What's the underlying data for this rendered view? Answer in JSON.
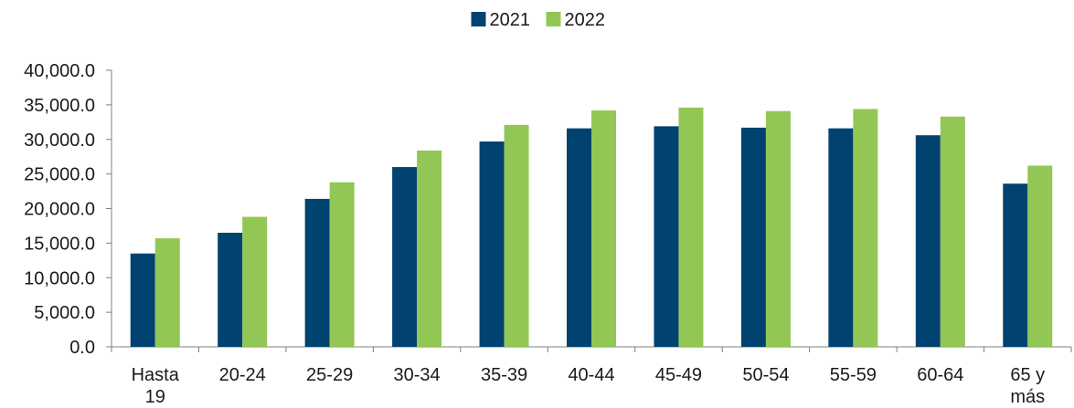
{
  "chart_data": {
    "type": "bar",
    "categories": [
      "Hasta 19",
      "20-24",
      "25-29",
      "30-34",
      "35-39",
      "40-44",
      "45-49",
      "50-54",
      "55-59",
      "60-64",
      "65 y más"
    ],
    "category_lines": [
      [
        "Hasta",
        "19"
      ],
      [
        "20-24"
      ],
      [
        "25-29"
      ],
      [
        "30-34"
      ],
      [
        "35-39"
      ],
      [
        "40-44"
      ],
      [
        "45-49"
      ],
      [
        "50-54"
      ],
      [
        "55-59"
      ],
      [
        "60-64"
      ],
      [
        "65 y",
        "más"
      ]
    ],
    "series": [
      {
        "name": "2021",
        "color": "#004270",
        "values": [
          13500,
          16500,
          21400,
          26000,
          29700,
          31600,
          31900,
          31700,
          31600,
          30600,
          23600
        ]
      },
      {
        "name": "2022",
        "color": "#92c756",
        "values": [
          15700,
          18800,
          23800,
          28400,
          32100,
          34200,
          34600,
          34100,
          34400,
          33300,
          26200
        ]
      }
    ],
    "yticks": [
      "0.0",
      "5,000.0",
      "10,000.0",
      "15,000.0",
      "20,000.0",
      "25,000.0",
      "30,000.0",
      "35,000.0",
      "40,000.0"
    ],
    "ylim": [
      0,
      40000
    ],
    "title": "",
    "xlabel": "",
    "ylabel": "",
    "legend_position": "top-center",
    "grid": false
  }
}
